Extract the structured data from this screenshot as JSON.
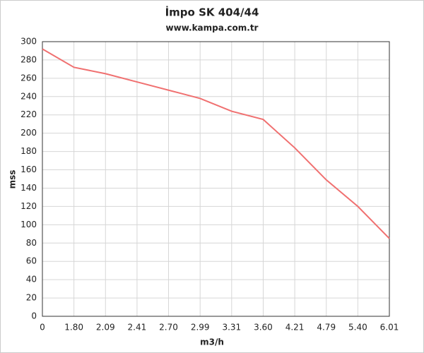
{
  "chart_data": {
    "type": "line",
    "title": "İmpo SK 404/44",
    "subtitle": "www.kampa.com.tr",
    "x_label": "m3/h",
    "y_label": "mss",
    "categories": [
      "0",
      "1.80",
      "2.09",
      "2.41",
      "2.70",
      "2.99",
      "3.31",
      "3.60",
      "4.21",
      "4.79",
      "5.40",
      "6.01"
    ],
    "series": [
      {
        "name": "mss",
        "color": "#f07070",
        "values": [
          292,
          272,
          265,
          256,
          247,
          238,
          224,
          215,
          184,
          149,
          120,
          85
        ]
      }
    ],
    "ylim": [
      0,
      300
    ],
    "yticks": [
      0,
      20,
      40,
      60,
      80,
      100,
      120,
      140,
      160,
      180,
      200,
      220,
      240,
      260,
      280,
      300
    ],
    "grid": true
  }
}
